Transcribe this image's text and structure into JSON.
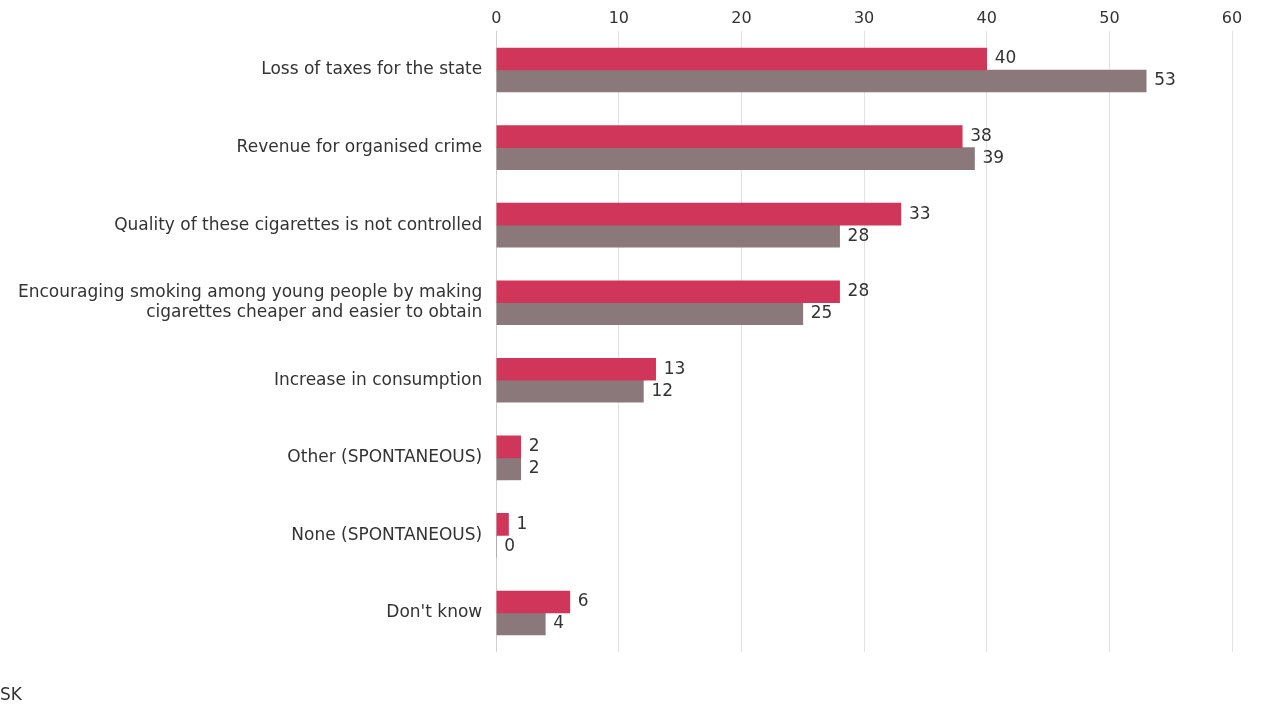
{
  "chart_data": {
    "type": "bar",
    "orientation": "horizontal",
    "categories": [
      "Loss of taxes for the state",
      "Revenue for organised crime",
      "Quality of these cigarettes is not controlled",
      "Encouraging smoking among young people by making cigarettes cheaper and easier to obtain",
      "Increase in consumption",
      "Other (SPONTANEOUS)",
      "None (SPONTANEOUS)",
      "Don't know"
    ],
    "series": [
      {
        "color": "#d0365a",
        "values": [
          40,
          38,
          33,
          28,
          13,
          2,
          1,
          6
        ]
      },
      {
        "color": "#8a787b",
        "values": [
          53,
          39,
          28,
          25,
          12,
          2,
          0,
          4
        ]
      }
    ],
    "xlim": [
      0,
      60
    ],
    "xticks": [
      0,
      10,
      20,
      30,
      40,
      50,
      60
    ],
    "grid": "x",
    "data_labels": true,
    "legend": false,
    "annotations": [
      "SK"
    ]
  }
}
